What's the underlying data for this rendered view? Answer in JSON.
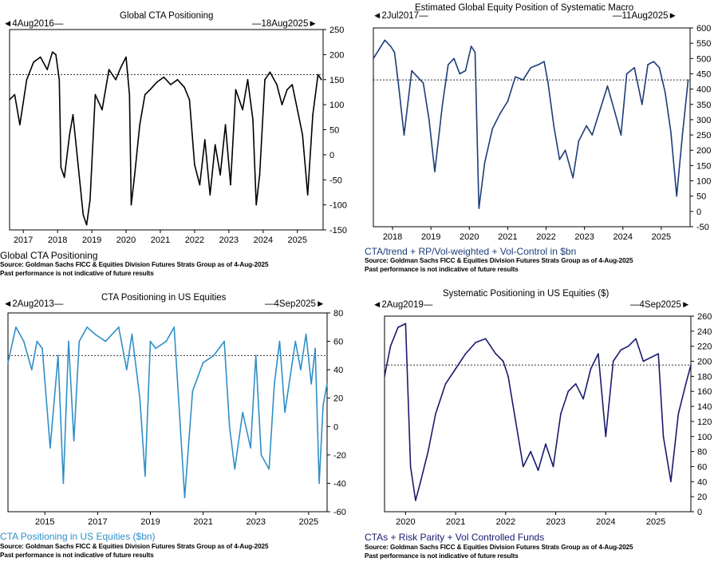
{
  "chart_data": [
    {
      "type": "line",
      "title": "Global CTA Positioning",
      "start_label": "4Aug2016",
      "end_label": "18Aug2025",
      "legend": "Global CTA Positioning",
      "series_color": "#000000",
      "ylim": [
        -150,
        250
      ],
      "yticks": [
        -150,
        -100,
        -50,
        0,
        50,
        100,
        150,
        200,
        250
      ],
      "xlim": [
        2016.6,
        2025.75
      ],
      "xticks": [
        2017,
        2018,
        2019,
        2020,
        2021,
        2022,
        2023,
        2024,
        2025
      ],
      "ref_line": 160,
      "source_lines": [
        "Source: Goldman Sachs FICC & Equities Division Futures Strats Group as of 4-Aug-2025",
        "Past performance is not indicative of future results"
      ],
      "x": [
        2016.6,
        2016.75,
        2016.9,
        2017.1,
        2017.3,
        2017.5,
        2017.7,
        2017.85,
        2017.95,
        2018.05,
        2018.1,
        2018.2,
        2018.35,
        2018.45,
        2018.6,
        2018.75,
        2018.85,
        2018.95,
        2019.1,
        2019.3,
        2019.5,
        2019.7,
        2019.85,
        2020.0,
        2020.1,
        2020.15,
        2020.25,
        2020.4,
        2020.55,
        2020.7,
        2020.9,
        2021.1,
        2021.3,
        2021.5,
        2021.7,
        2021.85,
        2022.0,
        2022.15,
        2022.3,
        2022.45,
        2022.6,
        2022.75,
        2022.9,
        2023.05,
        2023.2,
        2023.4,
        2023.55,
        2023.7,
        2023.8,
        2023.9,
        2024.05,
        2024.2,
        2024.4,
        2024.55,
        2024.7,
        2024.85,
        2025.0,
        2025.15,
        2025.3,
        2025.45,
        2025.6,
        2025.7
      ],
      "values": [
        110,
        120,
        60,
        150,
        185,
        195,
        170,
        205,
        200,
        150,
        -25,
        -45,
        40,
        80,
        -20,
        -120,
        -140,
        -90,
        120,
        90,
        170,
        150,
        175,
        195,
        120,
        -100,
        -40,
        60,
        120,
        130,
        145,
        155,
        140,
        150,
        135,
        110,
        -20,
        -60,
        30,
        -80,
        20,
        -40,
        60,
        -60,
        130,
        90,
        150,
        70,
        -100,
        -40,
        150,
        165,
        140,
        100,
        130,
        140,
        90,
        40,
        -80,
        80,
        160,
        150
      ]
    },
    {
      "type": "line",
      "title": "Estimated Global Equity Position of Systematic Macro",
      "start_label": "2Jul2017",
      "end_label": "11Aug2025",
      "legend": "CTA/trend + RP/Vol-weighted + Vol-Control in $bn",
      "series_color": "#1c3d78",
      "ylim": [
        -50,
        600
      ],
      "yticks": [
        -50,
        0,
        50,
        100,
        150,
        200,
        250,
        300,
        350,
        400,
        450,
        500,
        550,
        600
      ],
      "xlim": [
        2017.5,
        2025.75
      ],
      "xticks": [
        2018,
        2019,
        2020,
        2021,
        2022,
        2023,
        2024,
        2025
      ],
      "ref_line": 430,
      "source_lines": [
        "Source: Goldman Sachs FICC & Equities Division Futures Strats Group as of 4-Aug-2025",
        "Past performance is not indicative of future results"
      ],
      "x": [
        2017.5,
        2017.65,
        2017.8,
        2017.95,
        2018.05,
        2018.15,
        2018.3,
        2018.5,
        2018.65,
        2018.8,
        2018.95,
        2019.1,
        2019.3,
        2019.45,
        2019.6,
        2019.75,
        2019.9,
        2020.05,
        2020.15,
        2020.25,
        2020.4,
        2020.6,
        2020.8,
        2021.0,
        2021.2,
        2021.4,
        2021.6,
        2021.8,
        2021.95,
        2022.05,
        2022.2,
        2022.35,
        2022.5,
        2022.7,
        2022.85,
        2023.05,
        2023.2,
        2023.4,
        2023.6,
        2023.8,
        2023.95,
        2024.1,
        2024.3,
        2024.5,
        2024.65,
        2024.8,
        2024.95,
        2025.1,
        2025.25,
        2025.4,
        2025.55,
        2025.7
      ],
      "values": [
        500,
        530,
        560,
        540,
        520,
        420,
        250,
        460,
        440,
        420,
        300,
        130,
        350,
        480,
        500,
        450,
        460,
        540,
        520,
        10,
        160,
        270,
        320,
        360,
        440,
        430,
        470,
        480,
        490,
        420,
        280,
        170,
        200,
        110,
        230,
        280,
        250,
        330,
        410,
        320,
        250,
        450,
        470,
        350,
        480,
        490,
        470,
        390,
        260,
        50,
        250,
        430
      ]
    },
    {
      "type": "line",
      "title": "CTA Positioning in US Equities",
      "start_label": "2Aug2013",
      "end_label": "4Sep2025",
      "legend": "CTA Positioning in US Equities ($bn)",
      "series_color": "#2f8fc7",
      "ylim": [
        -60,
        80
      ],
      "yticks": [
        -60,
        -40,
        -20,
        0,
        20,
        40,
        60,
        80
      ],
      "xlim": [
        2013.6,
        2025.7
      ],
      "xticks": [
        2015,
        2017,
        2019,
        2021,
        2023,
        2025
      ],
      "ref_line": 50,
      "source_lines": [
        "Source: Goldman Sachs FICC & Equities Division Futures Strats Group as of 4-Aug-2025",
        "Past performance is not indicative of future results"
      ],
      "x": [
        2013.6,
        2013.9,
        2014.2,
        2014.5,
        2014.7,
        2014.9,
        2015.2,
        2015.5,
        2015.7,
        2015.9,
        2016.1,
        2016.3,
        2016.6,
        2016.9,
        2017.3,
        2017.8,
        2018.1,
        2018.3,
        2018.6,
        2018.8,
        2019.0,
        2019.2,
        2019.6,
        2019.9,
        2020.1,
        2020.3,
        2020.6,
        2021.0,
        2021.4,
        2021.8,
        2022.0,
        2022.2,
        2022.5,
        2022.8,
        2023.0,
        2023.2,
        2023.5,
        2023.7,
        2023.9,
        2024.1,
        2024.5,
        2024.7,
        2024.9,
        2025.1,
        2025.25,
        2025.4,
        2025.55,
        2025.7
      ],
      "values": [
        45,
        70,
        60,
        40,
        60,
        55,
        -15,
        50,
        -40,
        60,
        -10,
        60,
        70,
        65,
        60,
        70,
        40,
        65,
        20,
        -35,
        60,
        55,
        60,
        70,
        10,
        -50,
        25,
        45,
        50,
        60,
        0,
        -30,
        10,
        -15,
        50,
        -20,
        -30,
        30,
        60,
        10,
        60,
        40,
        65,
        30,
        55,
        -40,
        15,
        30
      ]
    },
    {
      "type": "line",
      "title": "Systematic Positioning in US Equities ($)",
      "start_label": "2Aug2019",
      "end_label": "4Sep2025",
      "legend": "CTAs + Risk Parity + Vol Controlled Funds",
      "series_color": "#1a1a6e",
      "ylim": [
        0,
        260
      ],
      "yticks": [
        0,
        20,
        40,
        60,
        80,
        100,
        120,
        140,
        160,
        180,
        200,
        220,
        240,
        260
      ],
      "xlim": [
        2019.58,
        2025.7
      ],
      "xticks": [
        2020,
        2021,
        2022,
        2023,
        2024,
        2025
      ],
      "ref_line": 195,
      "source_lines": [
        "Source: Goldman Sachs FICC & Equities Division Futures Strats Group as of 4-Aug-2025",
        "Past performance is not indicative of future results"
      ],
      "x": [
        2019.58,
        2019.7,
        2019.85,
        2020.0,
        2020.1,
        2020.2,
        2020.3,
        2020.45,
        2020.6,
        2020.8,
        2021.0,
        2021.2,
        2021.4,
        2021.6,
        2021.8,
        2021.95,
        2022.05,
        2022.2,
        2022.35,
        2022.5,
        2022.65,
        2022.8,
        2022.95,
        2023.1,
        2023.25,
        2023.4,
        2023.55,
        2023.7,
        2023.85,
        2024.0,
        2024.15,
        2024.3,
        2024.45,
        2024.6,
        2024.75,
        2024.9,
        2025.05,
        2025.15,
        2025.3,
        2025.45,
        2025.6,
        2025.7
      ],
      "values": [
        180,
        220,
        245,
        250,
        60,
        15,
        40,
        80,
        130,
        170,
        190,
        210,
        225,
        230,
        210,
        200,
        180,
        120,
        60,
        80,
        55,
        90,
        60,
        130,
        160,
        170,
        150,
        190,
        210,
        100,
        200,
        215,
        220,
        230,
        200,
        205,
        210,
        100,
        40,
        130,
        170,
        195
      ]
    }
  ]
}
